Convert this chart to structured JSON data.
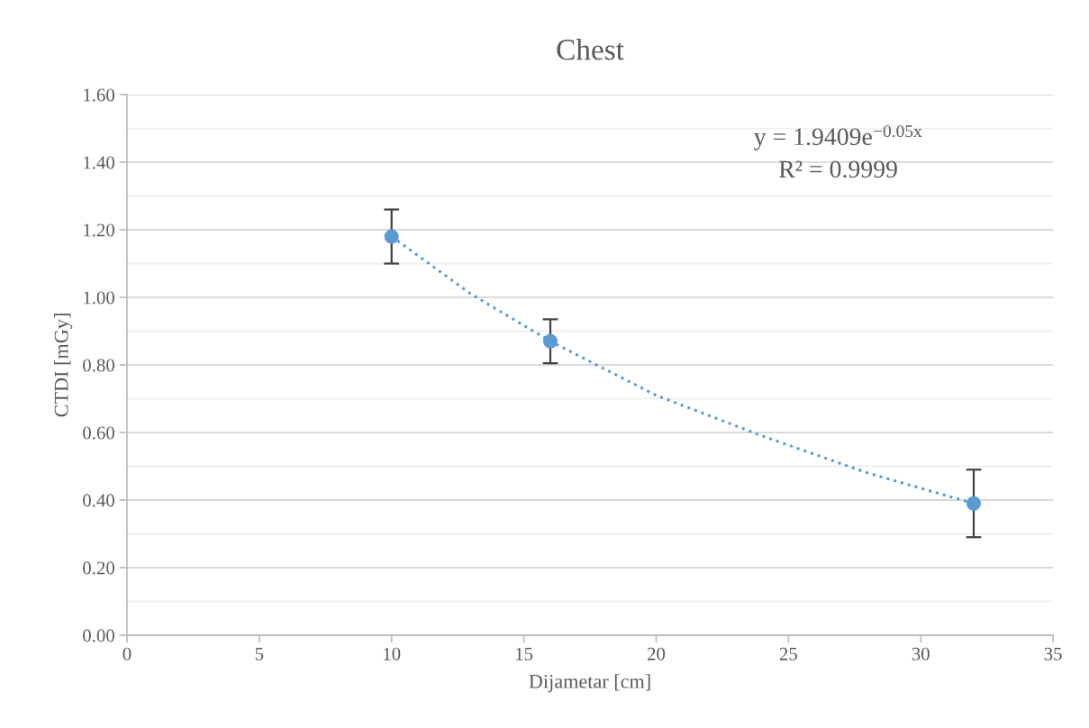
{
  "chart_data": {
    "type": "scatter",
    "title": "Chest",
    "xlabel": "Dijametar [cm]",
    "ylabel": "CTDI [mGy]",
    "series": [
      {
        "color": "#5b9bd5",
        "x": [
          10,
          16,
          32
        ],
        "values": [
          1.18,
          0.87,
          0.39
        ],
        "errors": [
          0.08,
          0.065,
          0.1
        ],
        "marker": "circle"
      },
      {
        "type": "line",
        "color": "#5b9bd5",
        "x": [
          10,
          13,
          16,
          20,
          24,
          28,
          32
        ],
        "values": [
          1.18,
          1.01,
          0.87,
          0.71,
          0.59,
          0.48,
          0.39
        ],
        "line_style": "dotted",
        "marker": "none"
      }
    ],
    "xlim": [
      0,
      35
    ],
    "xticks": [
      0,
      5,
      10,
      15,
      20,
      25,
      30,
      35
    ],
    "ylim": [
      0,
      1.6
    ],
    "yticks": [
      {
        "value": 0,
        "label": "0.00"
      },
      {
        "value": 0.1,
        "label": null
      },
      {
        "value": 0.2,
        "label": "0.20"
      },
      {
        "value": 0.3,
        "label": null
      },
      {
        "value": 0.4,
        "label": "0.40"
      },
      {
        "value": 0.5,
        "label": null
      },
      {
        "value": 0.6,
        "label": "0.60"
      },
      {
        "value": 0.7,
        "label": null
      },
      {
        "value": 0.8,
        "label": "0.80"
      },
      {
        "value": 0.9,
        "label": null
      },
      {
        "value": 1.0,
        "label": "1.00"
      },
      {
        "value": 1.1,
        "label": null
      },
      {
        "value": 1.2,
        "label": "1.20"
      },
      {
        "value": 1.3,
        "label": null
      },
      {
        "value": 1.4,
        "label": "1.40"
      },
      {
        "value": 1.5,
        "label": null
      },
      {
        "value": 1.6,
        "label": "1.60"
      }
    ],
    "grid": "y",
    "annotations": [
      "y = 1.9409e$^{−0.05x}$",
      "R² = 0.9999"
    ]
  }
}
